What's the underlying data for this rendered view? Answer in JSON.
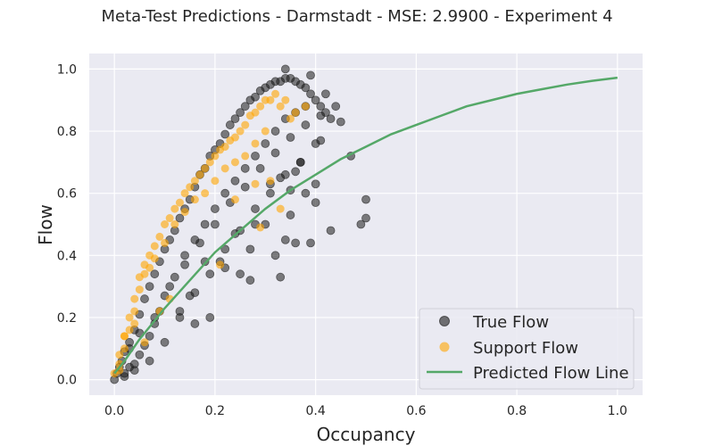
{
  "chart_data": {
    "type": "scatter",
    "title": "Meta-Test Predictions - Darmstadt - MSE: 2.9900 - Experiment 4",
    "xlabel": "Occupancy",
    "ylabel": "Flow",
    "xlim": [
      -0.05,
      1.05
    ],
    "ylim": [
      -0.05,
      1.05
    ],
    "xticks": [
      0.0,
      0.2,
      0.4,
      0.6,
      0.8,
      1.0
    ],
    "yticks": [
      0.0,
      0.2,
      0.4,
      0.6,
      0.8,
      1.0
    ],
    "xtick_labels": [
      "0.0",
      "0.2",
      "0.4",
      "0.6",
      "0.8",
      "1.0"
    ],
    "ytick_labels": [
      "0.0",
      "0.2",
      "0.4",
      "0.6",
      "0.8",
      "1.0"
    ],
    "grid": true,
    "legend_position": "bottom-right",
    "colors": {
      "background": "#eaeaf2",
      "grid": "#ffffff",
      "true_flow": "#1a1a1a",
      "support_flow": "#ffa500",
      "predicted_line": "#55a868"
    },
    "series": [
      {
        "name": "True Flow",
        "kind": "scatter",
        "x": [
          0.0,
          0.005,
          0.01,
          0.015,
          0.02,
          0.02,
          0.03,
          0.03,
          0.04,
          0.04,
          0.05,
          0.05,
          0.06,
          0.06,
          0.07,
          0.07,
          0.08,
          0.08,
          0.09,
          0.09,
          0.1,
          0.1,
          0.11,
          0.12,
          0.12,
          0.13,
          0.14,
          0.14,
          0.15,
          0.16,
          0.16,
          0.17,
          0.18,
          0.18,
          0.19,
          0.2,
          0.2,
          0.21,
          0.22,
          0.22,
          0.23,
          0.24,
          0.24,
          0.25,
          0.26,
          0.26,
          0.27,
          0.28,
          0.28,
          0.29,
          0.3,
          0.3,
          0.31,
          0.32,
          0.32,
          0.33,
          0.34,
          0.34,
          0.35,
          0.36,
          0.36,
          0.37,
          0.38,
          0.38,
          0.39,
          0.4,
          0.41,
          0.42,
          0.03,
          0.05,
          0.08,
          0.11,
          0.14,
          0.17,
          0.2,
          0.23,
          0.26,
          0.29,
          0.32,
          0.35,
          0.38,
          0.41,
          0.04,
          0.07,
          0.1,
          0.13,
          0.16,
          0.19,
          0.22,
          0.25,
          0.28,
          0.31,
          0.34,
          0.37,
          0.4,
          0.43,
          0.34,
          0.39,
          0.42,
          0.44,
          0.45,
          0.41,
          0.37,
          0.36,
          0.33,
          0.31,
          0.28,
          0.24,
          0.33,
          0.39,
          0.4,
          0.32,
          0.27,
          0.25,
          0.22,
          0.21,
          0.18,
          0.15,
          0.13,
          0.16,
          0.19,
          0.47,
          0.5,
          0.49,
          0.5,
          0.43,
          0.4,
          0.38,
          0.35,
          0.35,
          0.34,
          0.36,
          0.3,
          0.27,
          0.02
        ],
        "y": [
          0.0,
          0.02,
          0.04,
          0.06,
          0.09,
          0.02,
          0.12,
          0.04,
          0.16,
          0.05,
          0.21,
          0.08,
          0.26,
          0.11,
          0.3,
          0.14,
          0.34,
          0.18,
          0.38,
          0.22,
          0.42,
          0.27,
          0.45,
          0.48,
          0.33,
          0.52,
          0.55,
          0.4,
          0.58,
          0.62,
          0.45,
          0.66,
          0.68,
          0.5,
          0.72,
          0.74,
          0.55,
          0.76,
          0.79,
          0.6,
          0.82,
          0.84,
          0.64,
          0.86,
          0.88,
          0.68,
          0.9,
          0.91,
          0.72,
          0.93,
          0.94,
          0.76,
          0.95,
          0.96,
          0.8,
          0.96,
          0.97,
          0.84,
          0.97,
          0.96,
          0.86,
          0.95,
          0.94,
          0.88,
          0.92,
          0.9,
          0.88,
          0.86,
          0.1,
          0.15,
          0.2,
          0.3,
          0.37,
          0.44,
          0.5,
          0.57,
          0.62,
          0.68,
          0.73,
          0.78,
          0.82,
          0.85,
          0.03,
          0.06,
          0.12,
          0.2,
          0.28,
          0.34,
          0.42,
          0.48,
          0.55,
          0.6,
          0.66,
          0.7,
          0.76,
          0.84,
          1.0,
          0.98,
          0.92,
          0.88,
          0.83,
          0.77,
          0.7,
          0.67,
          0.65,
          0.63,
          0.5,
          0.47,
          0.33,
          0.44,
          0.63,
          0.4,
          0.42,
          0.34,
          0.36,
          0.38,
          0.38,
          0.27,
          0.22,
          0.18,
          0.2,
          0.72,
          0.58,
          0.5,
          0.52,
          0.48,
          0.57,
          0.6,
          0.61,
          0.53,
          0.45,
          0.44,
          0.5,
          0.32,
          0.01
        ]
      },
      {
        "name": "Support Flow",
        "kind": "scatter",
        "x": [
          0.0,
          0.01,
          0.01,
          0.02,
          0.02,
          0.03,
          0.03,
          0.04,
          0.04,
          0.05,
          0.05,
          0.06,
          0.06,
          0.07,
          0.07,
          0.08,
          0.08,
          0.09,
          0.1,
          0.1,
          0.11,
          0.12,
          0.12,
          0.13,
          0.14,
          0.14,
          0.15,
          0.16,
          0.16,
          0.17,
          0.18,
          0.18,
          0.19,
          0.2,
          0.2,
          0.21,
          0.22,
          0.22,
          0.23,
          0.24,
          0.24,
          0.25,
          0.26,
          0.26,
          0.27,
          0.28,
          0.28,
          0.29,
          0.3,
          0.3,
          0.31,
          0.32,
          0.33,
          0.34,
          0.35,
          0.36,
          0.38,
          0.29,
          0.24,
          0.21,
          0.28,
          0.31,
          0.33,
          0.06,
          0.04,
          0.02,
          0.01,
          0.09,
          0.11
        ],
        "y": [
          0.02,
          0.05,
          0.08,
          0.1,
          0.14,
          0.16,
          0.2,
          0.22,
          0.26,
          0.29,
          0.33,
          0.34,
          0.37,
          0.4,
          0.36,
          0.43,
          0.39,
          0.46,
          0.5,
          0.44,
          0.52,
          0.55,
          0.5,
          0.57,
          0.6,
          0.54,
          0.62,
          0.64,
          0.58,
          0.66,
          0.68,
          0.6,
          0.7,
          0.72,
          0.64,
          0.74,
          0.75,
          0.68,
          0.77,
          0.78,
          0.7,
          0.8,
          0.82,
          0.72,
          0.85,
          0.86,
          0.76,
          0.88,
          0.9,
          0.8,
          0.9,
          0.92,
          0.88,
          0.9,
          0.84,
          0.86,
          0.88,
          0.49,
          0.58,
          0.37,
          0.63,
          0.64,
          0.55,
          0.12,
          0.18,
          0.14,
          0.03,
          0.22,
          0.26
        ]
      },
      {
        "name": "Predicted Flow Line",
        "kind": "line",
        "x": [
          0.0,
          0.02,
          0.05,
          0.1,
          0.15,
          0.2,
          0.25,
          0.3,
          0.35,
          0.4,
          0.45,
          0.5,
          0.55,
          0.6,
          0.65,
          0.7,
          0.75,
          0.8,
          0.85,
          0.9,
          0.95,
          1.0
        ],
        "y": [
          0.02,
          0.06,
          0.13,
          0.23,
          0.32,
          0.41,
          0.48,
          0.55,
          0.61,
          0.66,
          0.71,
          0.75,
          0.79,
          0.82,
          0.85,
          0.88,
          0.9,
          0.92,
          0.935,
          0.95,
          0.962,
          0.972
        ]
      }
    ]
  }
}
